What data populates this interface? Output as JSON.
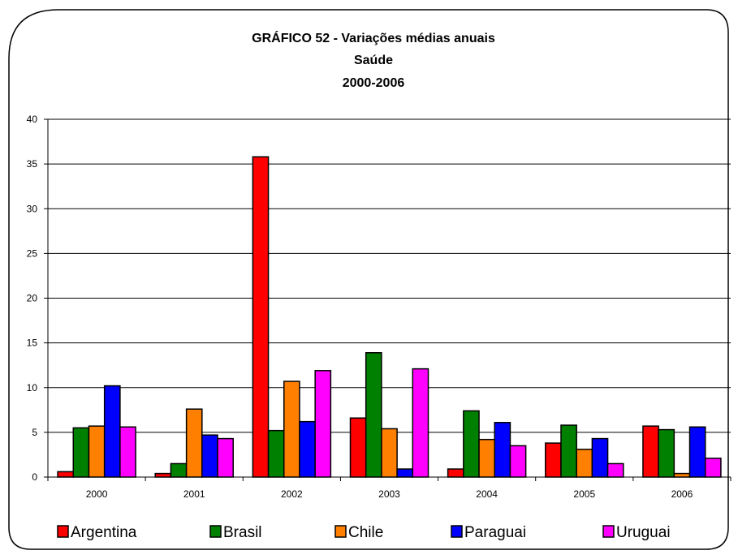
{
  "chart_data": {
    "type": "bar",
    "title_lines": [
      "GRÁFICO 52 - Variações médias anuais",
      "Saúde",
      "2000-2006"
    ],
    "categories": [
      "2000",
      "2001",
      "2002",
      "2003",
      "2004",
      "2005",
      "2006"
    ],
    "series": [
      {
        "name": "Argentina",
        "color": "#ff0000",
        "values": [
          0.6,
          0.4,
          35.8,
          6.6,
          0.9,
          3.8,
          5.7
        ]
      },
      {
        "name": "Brasil",
        "color": "#008000",
        "values": [
          5.5,
          1.5,
          5.2,
          13.9,
          7.4,
          5.8,
          5.3
        ]
      },
      {
        "name": "Chile",
        "color": "#ff8000",
        "values": [
          5.7,
          7.6,
          10.7,
          5.4,
          4.2,
          3.1,
          0.4
        ]
      },
      {
        "name": "Paraguai",
        "color": "#0000ff",
        "values": [
          10.2,
          4.7,
          6.2,
          0.9,
          6.1,
          4.3,
          5.6
        ]
      },
      {
        "name": "Uruguai",
        "color": "#ff00ff",
        "values": [
          5.6,
          4.3,
          11.9,
          12.1,
          3.5,
          1.5,
          2.1
        ]
      }
    ],
    "ylim": [
      0,
      40
    ],
    "yticks": [
      "0",
      "5",
      "10",
      "15",
      "20",
      "25",
      "30",
      "35",
      "40"
    ],
    "grid": true,
    "legend_position": "bottom"
  }
}
